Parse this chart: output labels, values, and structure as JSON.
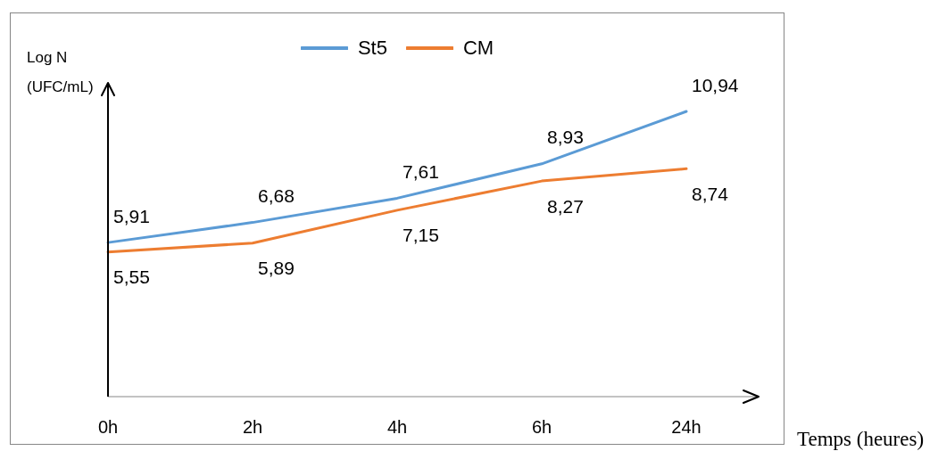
{
  "chart_data": {
    "type": "line",
    "xlabel": "Temps (heures)",
    "ylabel": "Log N (UFC/mL)",
    "categories": [
      "0h",
      "2h",
      "4h",
      "6h",
      "24h"
    ],
    "series": [
      {
        "name": "St5",
        "color": "#5b9bd5",
        "values": [
          5.91,
          6.68,
          7.61,
          8.93,
          10.94
        ],
        "value_labels": [
          "5,91",
          "6,68",
          "7,61",
          "8,93",
          "10,94"
        ]
      },
      {
        "name": "CM",
        "color": "#ed7d31",
        "values": [
          5.55,
          5.89,
          7.15,
          8.27,
          8.74
        ],
        "value_labels": [
          "5,55",
          "5,89",
          "7,15",
          "8,27",
          "8,74"
        ]
      }
    ],
    "ylim": [
      0,
      12
    ],
    "tick_labels": "x",
    "legend": "top"
  }
}
